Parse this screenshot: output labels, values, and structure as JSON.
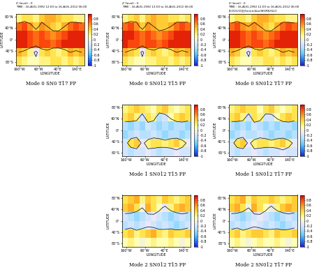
{
  "chart_data": [
    {
      "type": "heatmap",
      "title": "Mode 0 SN0 T17 FP",
      "header": [
        "Z (level) : 0",
        "TIME : 16-AUG-1992 12:00 to 16-AUG-2012 06:00"
      ],
      "xlabel": "LONGITUDE",
      "ylabel": "LATITUDE",
      "x": [
        -165,
        -135,
        -105,
        -75,
        -45,
        -15,
        15,
        45,
        75,
        105,
        135,
        165
      ],
      "y": [
        75,
        45,
        15,
        -15,
        -45,
        -75
      ],
      "cells": [
        [
          0.2,
          0.3,
          0.3,
          0.2,
          0.4,
          0.5,
          0.5,
          0.4,
          0.3,
          0.3,
          0.2,
          0.2
        ],
        [
          0.7,
          0.8,
          0.6,
          0.4,
          0.6,
          0.5,
          0.4,
          0.3,
          0.5,
          0.7,
          0.8,
          0.7
        ],
        [
          0.9,
          0.9,
          0.8,
          0.7,
          0.8,
          0.7,
          0.6,
          0.7,
          0.8,
          0.9,
          0.9,
          0.9
        ],
        [
          0.9,
          0.9,
          0.8,
          0.7,
          0.8,
          0.8,
          0.7,
          0.8,
          0.9,
          0.9,
          0.9,
          0.9
        ],
        [
          0.5,
          0.4,
          0.2,
          -0.1,
          0.3,
          0.4,
          0.3,
          0.2,
          0.3,
          0.5,
          0.4,
          0.5
        ],
        [
          0.3,
          0.2,
          0.1,
          0.1,
          0.2,
          0.2,
          0.3,
          0.3,
          0.2,
          0.3,
          0.2,
          0.3
        ]
      ],
      "contour_levels": [
        0,
        0.5
      ],
      "xlim": [
        -180,
        180
      ],
      "ylim": [
        -90,
        90
      ],
      "xticks": [
        {
          "value": -160,
          "label": "160°W"
        },
        {
          "value": -60,
          "label": "60°W"
        },
        {
          "value": 40,
          "label": "40°E"
        },
        {
          "value": 140,
          "label": "140°E"
        }
      ],
      "yticks": [
        {
          "value": 80,
          "label": "80°N"
        },
        {
          "value": 40,
          "label": "40°N"
        },
        {
          "value": 0,
          "label": "0°"
        },
        {
          "value": -40,
          "label": "40°S"
        },
        {
          "value": -80,
          "label": "80°S"
        }
      ],
      "colorbar_range": [
        -1,
        1
      ],
      "colorbar_ticks": [
        -1,
        -0.8,
        -0.6,
        -0.4,
        -0.2,
        0,
        0.2,
        0.4,
        0.6,
        0.8
      ]
    },
    {
      "type": "heatmap",
      "title": "Mode 0 SN012 T15 FP",
      "header": [
        "Z (level) : 0",
        "TIME : 16-AUG-1992 12:00 to 16-AUG-2012 06:00"
      ],
      "xlabel": "LONGITUDE",
      "ylabel": "LATITUDE",
      "x": [
        -165,
        -135,
        -105,
        -75,
        -45,
        -15,
        15,
        45,
        75,
        105,
        135,
        165
      ],
      "y": [
        75,
        45,
        15,
        -15,
        -45,
        -75
      ],
      "cells": [
        [
          0.2,
          0.3,
          0.4,
          0.2,
          0.4,
          0.5,
          0.4,
          0.4,
          0.3,
          0.3,
          0.2,
          0.3
        ],
        [
          0.7,
          0.8,
          0.6,
          0.4,
          0.6,
          0.5,
          0.4,
          0.4,
          0.5,
          0.7,
          0.8,
          0.7
        ],
        [
          0.9,
          0.9,
          0.8,
          0.7,
          0.8,
          0.7,
          0.6,
          0.7,
          0.8,
          0.9,
          0.9,
          0.9
        ],
        [
          0.9,
          0.8,
          0.8,
          0.7,
          0.8,
          0.8,
          0.7,
          0.8,
          0.9,
          0.9,
          0.9,
          0.9
        ],
        [
          0.5,
          0.4,
          0.3,
          -0.1,
          0.3,
          0.4,
          0.3,
          0.2,
          0.3,
          0.5,
          0.4,
          0.5
        ],
        [
          0.3,
          0.2,
          0.1,
          0.1,
          0.2,
          0.2,
          0.3,
          0.3,
          0.2,
          0.3,
          0.2,
          0.3
        ]
      ],
      "contour_levels": [
        0,
        0.5
      ],
      "xlim": [
        -180,
        180
      ],
      "ylim": [
        -90,
        90
      ],
      "xticks": [
        {
          "value": -160,
          "label": "160°W"
        },
        {
          "value": -60,
          "label": "60°W"
        },
        {
          "value": 40,
          "label": "40°E"
        },
        {
          "value": 140,
          "label": "140°E"
        }
      ],
      "yticks": [
        {
          "value": 80,
          "label": "80°N"
        },
        {
          "value": 40,
          "label": "40°N"
        },
        {
          "value": 0,
          "label": "0°"
        },
        {
          "value": -40,
          "label": "40°S"
        },
        {
          "value": -80,
          "label": "80°S"
        }
      ],
      "colorbar_range": [
        -1,
        1
      ],
      "colorbar_ticks": [
        -1,
        -0.8,
        -0.6,
        -0.4,
        -0.2,
        0,
        0.2,
        0.4,
        0.6,
        0.8
      ]
    },
    {
      "type": "heatmap",
      "title": "Mode 0 SN012 T17 FP",
      "header": [
        "Z (level) : 0",
        "TIME : 16-AUG-1992 12:00 to 16-AUG-2012 06:00",
        "[13/01/15][/home/dan/WORK/GLO"
      ],
      "xlabel": "LONGITUDE",
      "ylabel": "LATITUDE",
      "x": [
        -165,
        -135,
        -105,
        -75,
        -45,
        -15,
        15,
        45,
        75,
        105,
        135,
        165
      ],
      "y": [
        75,
        45,
        15,
        -15,
        -45,
        -75
      ],
      "cells": [
        [
          0.2,
          0.3,
          0.3,
          0.2,
          0.4,
          0.5,
          0.5,
          0.4,
          0.3,
          0.3,
          0.2,
          0.2
        ],
        [
          0.7,
          0.8,
          0.6,
          0.5,
          0.6,
          0.5,
          0.4,
          0.3,
          0.5,
          0.7,
          0.8,
          0.7
        ],
        [
          0.9,
          0.9,
          0.8,
          0.7,
          0.8,
          0.7,
          0.6,
          0.7,
          0.8,
          0.9,
          0.9,
          0.9
        ],
        [
          0.9,
          0.9,
          0.8,
          0.7,
          0.8,
          0.8,
          0.7,
          0.8,
          0.9,
          0.9,
          0.9,
          0.9
        ],
        [
          0.5,
          0.4,
          0.2,
          -0.1,
          0.3,
          0.4,
          0.3,
          0.2,
          0.3,
          0.5,
          0.4,
          0.5
        ],
        [
          0.3,
          0.2,
          0.1,
          0.1,
          0.2,
          0.2,
          0.3,
          0.3,
          0.2,
          0.3,
          0.2,
          0.3
        ]
      ],
      "contour_levels": [
        0,
        0.5
      ],
      "xlim": [
        -180,
        180
      ],
      "ylim": [
        -90,
        90
      ],
      "xticks": [
        {
          "value": -160,
          "label": "160°W"
        },
        {
          "value": -60,
          "label": "60°W"
        },
        {
          "value": 40,
          "label": "40°E"
        },
        {
          "value": 140,
          "label": "140°E"
        }
      ],
      "yticks": [
        {
          "value": 80,
          "label": "80°N"
        },
        {
          "value": 40,
          "label": "40°N"
        },
        {
          "value": 0,
          "label": "0°"
        },
        {
          "value": -40,
          "label": "40°S"
        },
        {
          "value": -80,
          "label": "80°S"
        }
      ],
      "colorbar_range": [
        -1,
        1
      ],
      "colorbar_ticks": [
        -1,
        -0.8,
        -0.6,
        -0.4,
        -0.2,
        0,
        0.2,
        0.4,
        0.6,
        0.8
      ]
    },
    {
      "type": "heatmap",
      "title": "Mode 1 SN012 T15 FP",
      "xlabel": "LONGITUDE",
      "ylabel": "LATITUDE",
      "x": [
        -165,
        -135,
        -105,
        -75,
        -45,
        -15,
        15,
        45,
        75,
        105,
        135,
        165
      ],
      "y": [
        75,
        45,
        15,
        -15,
        -45,
        -75
      ],
      "cells": [
        [
          0.2,
          0.3,
          0.4,
          0.3,
          0.2,
          0.1,
          0.3,
          0.4,
          0.2,
          0.1,
          0.2,
          0.3
        ],
        [
          0.3,
          0.4,
          0.2,
          -0.2,
          0.3,
          0.2,
          -0.3,
          -0.2,
          0.1,
          0.3,
          0.4,
          0.3
        ],
        [
          -0.3,
          -0.4,
          -0.3,
          -0.4,
          -0.2,
          -0.3,
          -0.4,
          -0.3,
          -0.4,
          -0.3,
          -0.3,
          -0.4
        ],
        [
          -0.4,
          -0.3,
          -0.2,
          -0.3,
          -0.3,
          -0.2,
          -0.3,
          -0.4,
          -0.3,
          -0.3,
          -0.4,
          -0.3
        ],
        [
          -0.2,
          0.3,
          0.4,
          -0.1,
          0.2,
          0.3,
          0.3,
          0.2,
          0.3,
          0.4,
          0.2,
          -0.1
        ],
        [
          -0.2,
          -0.3,
          -0.2,
          -0.2,
          -0.1,
          -0.2,
          -0.3,
          -0.2,
          -0.2,
          -0.1,
          -0.2,
          -0.2
        ]
      ],
      "contour_levels": [
        0,
        0.5
      ],
      "xlim": [
        -180,
        180
      ],
      "ylim": [
        -90,
        90
      ],
      "xticks": [
        {
          "value": -160,
          "label": "160°W"
        },
        {
          "value": -60,
          "label": "60°W"
        },
        {
          "value": 40,
          "label": "40°E"
        },
        {
          "value": 140,
          "label": "140°E"
        }
      ],
      "yticks": [
        {
          "value": 80,
          "label": "80°N"
        },
        {
          "value": 40,
          "label": "40°N"
        },
        {
          "value": 0,
          "label": "0°"
        },
        {
          "value": -40,
          "label": "40°S"
        },
        {
          "value": -80,
          "label": "80°S"
        }
      ],
      "colorbar_range": [
        -1,
        1
      ],
      "colorbar_ticks": [
        -1,
        -0.8,
        -0.6,
        -0.4,
        -0.2,
        0,
        0.2,
        0.4,
        0.6,
        0.8
      ]
    },
    {
      "type": "heatmap",
      "title": "Mode 1 SN012 T17 FP",
      "xlabel": "LONGITUDE",
      "ylabel": "LATITUDE",
      "x": [
        -165,
        -135,
        -105,
        -75,
        -45,
        -15,
        15,
        45,
        75,
        105,
        135,
        165
      ],
      "y": [
        75,
        45,
        15,
        -15,
        -45,
        -75
      ],
      "cells": [
        [
          0.2,
          0.3,
          0.4,
          0.3,
          0.3,
          0.1,
          0.3,
          0.4,
          0.2,
          0.1,
          0.2,
          0.3
        ],
        [
          0.3,
          0.4,
          0.2,
          -0.2,
          0.3,
          0.2,
          -0.2,
          -0.2,
          0.1,
          0.3,
          0.4,
          0.3
        ],
        [
          -0.3,
          -0.4,
          -0.3,
          -0.4,
          -0.2,
          -0.3,
          -0.4,
          -0.3,
          -0.4,
          -0.3,
          -0.3,
          -0.4
        ],
        [
          -0.4,
          -0.3,
          -0.2,
          -0.3,
          -0.3,
          -0.2,
          -0.3,
          -0.4,
          -0.3,
          -0.3,
          -0.4,
          -0.3
        ],
        [
          -0.2,
          0.3,
          0.4,
          -0.1,
          0.2,
          0.3,
          0.3,
          0.2,
          0.3,
          0.4,
          0.2,
          -0.1
        ],
        [
          -0.2,
          -0.3,
          -0.2,
          -0.2,
          -0.1,
          -0.2,
          -0.3,
          -0.2,
          -0.2,
          -0.1,
          -0.2,
          -0.2
        ]
      ],
      "contour_levels": [
        0,
        0.5
      ],
      "xlim": [
        -180,
        180
      ],
      "ylim": [
        -90,
        90
      ],
      "xticks": [
        {
          "value": -160,
          "label": "160°W"
        },
        {
          "value": -60,
          "label": "60°W"
        },
        {
          "value": 40,
          "label": "40°E"
        },
        {
          "value": 140,
          "label": "140°E"
        }
      ],
      "yticks": [
        {
          "value": 80,
          "label": "80°N"
        },
        {
          "value": 40,
          "label": "40°N"
        },
        {
          "value": 0,
          "label": "0°"
        },
        {
          "value": -40,
          "label": "40°S"
        },
        {
          "value": -80,
          "label": "80°S"
        }
      ],
      "colorbar_range": [
        -1,
        1
      ],
      "colorbar_ticks": [
        -1,
        -0.8,
        -0.6,
        -0.4,
        -0.2,
        0,
        0.2,
        0.4,
        0.6,
        0.8
      ]
    },
    {
      "type": "heatmap",
      "title": "Mode 2 SN012 T15 FP",
      "xlabel": "LONGITUDE",
      "ylabel": "LATITUDE",
      "x": [
        -165,
        -135,
        -105,
        -75,
        -45,
        -15,
        15,
        45,
        75,
        105,
        135,
        165
      ],
      "y": [
        75,
        45,
        15,
        -15,
        -45,
        -75
      ],
      "cells": [
        [
          0.3,
          0.4,
          0.5,
          0.2,
          0.4,
          0.3,
          0.2,
          0.4,
          0.3,
          0.2,
          0.3,
          0.4
        ],
        [
          0.4,
          0.5,
          0.3,
          0.0,
          0.5,
          0.3,
          0.1,
          -0.1,
          0.2,
          0.4,
          0.5,
          0.4
        ],
        [
          -0.2,
          -0.3,
          -0.4,
          -0.3,
          -0.2,
          -0.1,
          -0.2,
          -0.3,
          -0.4,
          -0.3,
          -0.2,
          -0.3
        ],
        [
          -0.3,
          -0.2,
          -0.3,
          -0.2,
          -0.1,
          -0.2,
          -0.3,
          -0.2,
          -0.3,
          -0.4,
          -0.3,
          -0.2
        ],
        [
          0.3,
          0.4,
          0.2,
          0.3,
          0.4,
          0.5,
          0.3,
          0.2,
          0.4,
          0.3,
          0.3,
          0.4
        ],
        [
          0.1,
          0.2,
          0.1,
          0.0,
          0.1,
          0.2,
          0.1,
          0.1,
          0.2,
          0.1,
          0.0,
          0.1
        ]
      ],
      "contour_levels": [
        0,
        0.5
      ],
      "xlim": [
        -180,
        180
      ],
      "ylim": [
        -90,
        90
      ],
      "xticks": [
        {
          "value": -160,
          "label": "160°W"
        },
        {
          "value": -60,
          "label": "60°W"
        },
        {
          "value": 40,
          "label": "40°E"
        },
        {
          "value": 140,
          "label": "140°E"
        }
      ],
      "yticks": [
        {
          "value": 80,
          "label": "80°N"
        },
        {
          "value": 40,
          "label": "40°N"
        },
        {
          "value": 0,
          "label": "0°"
        },
        {
          "value": -40,
          "label": "40°S"
        },
        {
          "value": -80,
          "label": "80°S"
        }
      ],
      "colorbar_range": [
        -1,
        1
      ],
      "colorbar_ticks": [
        -1,
        -0.8,
        -0.6,
        -0.4,
        -0.2,
        0,
        0.2,
        0.4,
        0.6,
        0.8
      ]
    },
    {
      "type": "heatmap",
      "title": "Mode 2 SN012 T17 FP",
      "xlabel": "LONGITUDE",
      "ylabel": "LATITUDE",
      "x": [
        -165,
        -135,
        -105,
        -75,
        -45,
        -15,
        15,
        45,
        75,
        105,
        135,
        165
      ],
      "y": [
        75,
        45,
        15,
        -15,
        -45,
        -75
      ],
      "cells": [
        [
          0.3,
          0.4,
          0.5,
          0.2,
          0.4,
          0.3,
          0.3,
          0.4,
          0.3,
          0.2,
          0.3,
          0.4
        ],
        [
          0.4,
          0.5,
          0.3,
          0.0,
          0.5,
          0.3,
          0.1,
          -0.1,
          0.2,
          0.4,
          0.5,
          0.4
        ],
        [
          -0.2,
          -0.3,
          -0.4,
          -0.3,
          -0.2,
          -0.1,
          -0.2,
          -0.3,
          -0.4,
          -0.3,
          -0.2,
          -0.3
        ],
        [
          -0.3,
          -0.2,
          -0.3,
          -0.2,
          -0.1,
          -0.2,
          -0.3,
          -0.2,
          -0.3,
          -0.4,
          -0.3,
          -0.2
        ],
        [
          0.3,
          0.4,
          0.2,
          0.3,
          0.4,
          0.4,
          0.3,
          0.2,
          0.4,
          0.3,
          0.3,
          0.4
        ],
        [
          0.1,
          0.2,
          0.1,
          0.0,
          0.1,
          0.2,
          0.1,
          0.1,
          0.2,
          0.1,
          0.0,
          0.1
        ]
      ],
      "contour_levels": [
        0,
        0.5
      ],
      "xlim": [
        -180,
        180
      ],
      "ylim": [
        -90,
        90
      ],
      "xticks": [
        {
          "value": -160,
          "label": "160°W"
        },
        {
          "value": -60,
          "label": "60°W"
        },
        {
          "value": 40,
          "label": "40°E"
        },
        {
          "value": 140,
          "label": "140°E"
        }
      ],
      "yticks": [
        {
          "value": 80,
          "label": "80°N"
        },
        {
          "value": 40,
          "label": "40°N"
        },
        {
          "value": 0,
          "label": "0°"
        },
        {
          "value": -40,
          "label": "40°S"
        },
        {
          "value": -80,
          "label": "80°S"
        }
      ],
      "colorbar_range": [
        -1,
        1
      ],
      "colorbar_ticks": [
        -1,
        -0.8,
        -0.6,
        -0.4,
        -0.2,
        0,
        0.2,
        0.4,
        0.6,
        0.8
      ]
    }
  ]
}
